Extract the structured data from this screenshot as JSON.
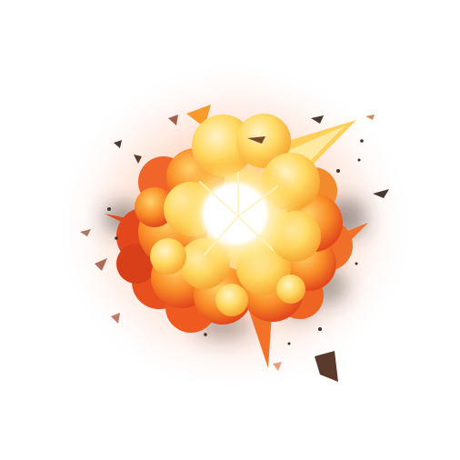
{
  "image": {
    "subject": "cartoon-fire-explosion",
    "background": "#ffffff"
  },
  "palette": {
    "glow_outer": "#ff8a5c",
    "glow_inner": "#ffd9a0",
    "flame_dark": "#e8401a",
    "flame_mid": "#f46a1e",
    "flame_orange": "#fa9a2a",
    "flame_yellow": "#ffd24a",
    "flame_light": "#ffeaa0",
    "core": "#fffbe8",
    "smoke": "#3a3432",
    "debris": "#5a3a2a"
  },
  "icons": [
    "explosion-icon",
    "debris-icon",
    "smoke-icon",
    "spark-icon"
  ]
}
